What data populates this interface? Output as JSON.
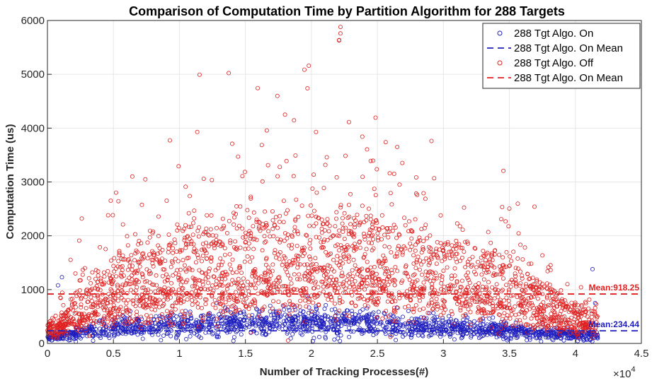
{
  "chart_data": {
    "type": "scatter",
    "title": "Comparison of Computation Time by Partition Algorithm for 288 Targets",
    "xlabel": "Number of Tracking Processes(#)",
    "ylabel": "Computation Time (us)",
    "x_multiplier_label": "×10",
    "x_multiplier_exponent": "4",
    "xlim": [
      0,
      4.5
    ],
    "ylim": [
      0,
      6000
    ],
    "xticks": [
      0,
      0.5,
      1,
      1.5,
      2,
      2.5,
      3,
      3.5,
      4,
      4.5
    ],
    "xtick_labels": [
      "0",
      "0.5",
      "1",
      "1.5",
      "2",
      "2.5",
      "3",
      "3.5",
      "4",
      "4.5"
    ],
    "yticks": [
      0,
      1000,
      2000,
      3000,
      4000,
      5000,
      6000
    ],
    "ytick_labels": [
      "0",
      "1000",
      "2000",
      "3000",
      "4000",
      "5000",
      "6000"
    ],
    "grid": true,
    "legend_position": "top-right",
    "series": [
      {
        "name": "288 Tgt Algo. On",
        "kind": "scatter",
        "color": "#1f1fbf",
        "x_range": [
          0,
          4.17
        ],
        "peak_center": 2.0,
        "center_values": {
          "0": 100,
          "0.5": 300,
          "1": 360,
          "1.5": 370,
          "2": 400,
          "2.5": 360,
          "3": 300,
          "3.5": 240,
          "4": 150
        },
        "notable_outliers": [
          {
            "x": 0.11,
            "y": 1230
          },
          {
            "x": 0.08,
            "y": 1080
          },
          {
            "x": 4.13,
            "y": 1380
          },
          {
            "x": 4.15,
            "y": 750
          },
          {
            "x": 1.97,
            "y": 880
          }
        ]
      },
      {
        "name": "288 Tgt Algo. On Mean",
        "kind": "mean-line",
        "color": "#1f1fbf",
        "value": 234.44,
        "label": "Mean:234.44"
      },
      {
        "name": "288 Tgt Algo. Off",
        "kind": "scatter",
        "color": "#e02020",
        "x_range": [
          0,
          4.17
        ],
        "center_values": {
          "0": 200,
          "0.5": 650,
          "1": 900,
          "1.5": 1000,
          "2": 1100,
          "2.5": 1050,
          "3": 900,
          "3.5": 650,
          "4": 300
        },
        "upper_band": {
          "0": 300,
          "0.5": 1300,
          "1": 1800,
          "1.5": 2000,
          "2": 2100,
          "2.5": 2000,
          "3": 1700,
          "3.5": 1300,
          "4": 600
        },
        "notable_outliers": [
          {
            "x": 2.22,
            "y": 5880
          },
          {
            "x": 2.22,
            "y": 5760
          },
          {
            "x": 2.21,
            "y": 5630
          },
          {
            "x": 1.98,
            "y": 5160
          },
          {
            "x": 1.97,
            "y": 4740
          },
          {
            "x": 1.4,
            "y": 3710
          },
          {
            "x": 1.8,
            "y": 4250
          },
          {
            "x": 0.26,
            "y": 2320
          },
          {
            "x": 2.65,
            "y": 3650
          },
          {
            "x": 2.93,
            "y": 3070
          }
        ]
      },
      {
        "name": "288 Tgt Algo. On Mean",
        "kind": "mean-line",
        "color": "#e02020",
        "value": 918.25,
        "label": "Mean:918.25"
      }
    ]
  }
}
